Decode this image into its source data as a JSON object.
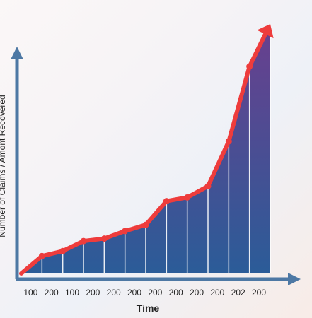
{
  "chart_data": {
    "type": "area",
    "xlabel": "Time",
    "ylabel": "Number of Claims / Amont Recovered",
    "tick_labels": [
      "100",
      "200",
      "100",
      "200",
      "200",
      "200",
      "200",
      "200",
      "200",
      "200",
      "202",
      "200"
    ],
    "x": [
      0,
      1,
      2,
      3,
      4,
      5,
      6,
      7,
      8,
      9,
      10,
      11,
      12
    ],
    "values": [
      0,
      7,
      9,
      13,
      14,
      17,
      19.5,
      29,
      30.5,
      35,
      53,
      83,
      100
    ],
    "ylim": [
      0,
      100
    ],
    "grid": false,
    "legend": "none",
    "colors": {
      "line": "#ee3c3c",
      "axis": "#4d78a4",
      "area_top": "#6a3f8e",
      "area_bottom": "#2b5c98",
      "drop_line": "#ffffff",
      "tick_label": "#222222",
      "axis_title": "#222222"
    }
  }
}
